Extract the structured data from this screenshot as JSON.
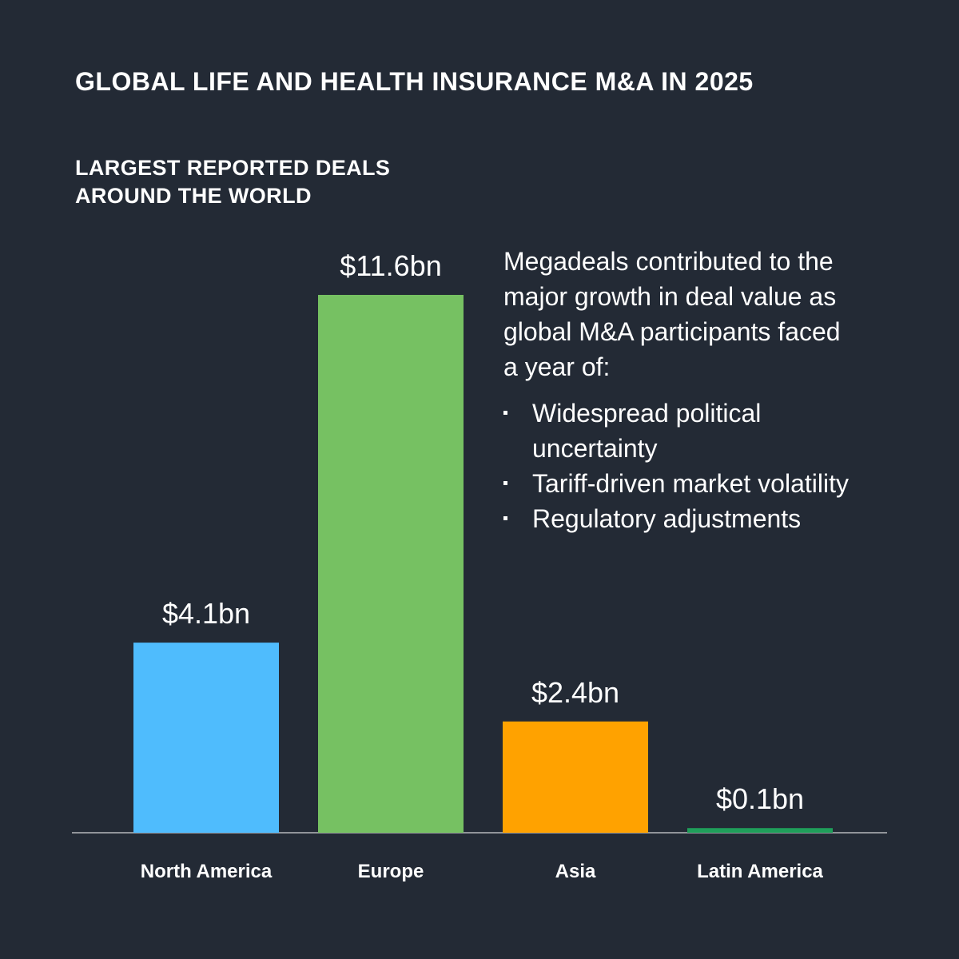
{
  "header": {
    "title": "GLOBAL LIFE AND HEALTH INSURANCE M&A IN 2025",
    "subtitle_lines": [
      "LARGEST REPORTED DEALS",
      "AROUND THE WORLD"
    ]
  },
  "narrative": {
    "intro_lines": [
      "Megadeals contributed to the",
      "major growth in deal value as",
      "global M&A participants faced",
      "a year of:"
    ],
    "bullets": [
      {
        "lines": [
          "Widespread political",
          "uncertainty"
        ]
      },
      {
        "lines": [
          "Tariff-driven market volatility"
        ]
      },
      {
        "lines": [
          "Regulatory adjustments"
        ]
      }
    ]
  },
  "chart_data": {
    "type": "bar",
    "title": "LARGEST REPORTED DEALS AROUND THE WORLD",
    "categories": [
      "North America",
      "Europe",
      "Asia",
      "Latin America"
    ],
    "values": [
      4.1,
      11.6,
      2.4,
      0.1
    ],
    "value_labels": [
      "$4.1bn",
      "$11.6bn",
      "$2.4bn",
      "$0.1bn"
    ],
    "unit": "bn",
    "colors": [
      "#4fbcfd",
      "#76c162",
      "#ffa200",
      "#1f9e5a"
    ],
    "ylim": [
      0,
      11.6
    ],
    "grid": false,
    "legend": "none"
  }
}
